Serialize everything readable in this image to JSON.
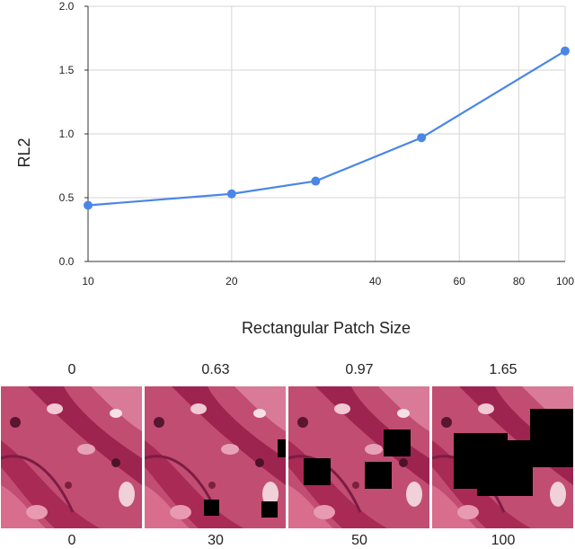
{
  "chart_data": {
    "type": "line",
    "title": "",
    "xlabel": "Rectangular Patch Size",
    "ylabel": "RL2",
    "x_scale": "log",
    "xlim": [
      10,
      100
    ],
    "ylim": [
      0.0,
      2.0
    ],
    "x_ticks": [
      "10",
      "20",
      "40",
      "60",
      "80",
      "100"
    ],
    "y_ticks": [
      "0.0",
      "0.5",
      "1.0",
      "1.5",
      "2.0"
    ],
    "grid": true,
    "color": "#4a86e8",
    "series": [
      {
        "x": [
          10,
          20,
          30,
          50,
          100
        ],
        "y": [
          0.44,
          0.53,
          0.63,
          0.97,
          1.65
        ]
      }
    ]
  },
  "gallery": {
    "tiles": [
      {
        "top_label": "0",
        "bottom_label": "0",
        "patch_count": 0
      },
      {
        "top_label": "0.63",
        "bottom_label": "30",
        "patch_count": 3
      },
      {
        "top_label": "0.97",
        "bottom_label": "50",
        "patch_count": 3
      },
      {
        "top_label": "1.65",
        "bottom_label": "100",
        "patch_count": 3
      }
    ],
    "tissue_base_color": "#b8385f",
    "patch_color": "#000000"
  }
}
